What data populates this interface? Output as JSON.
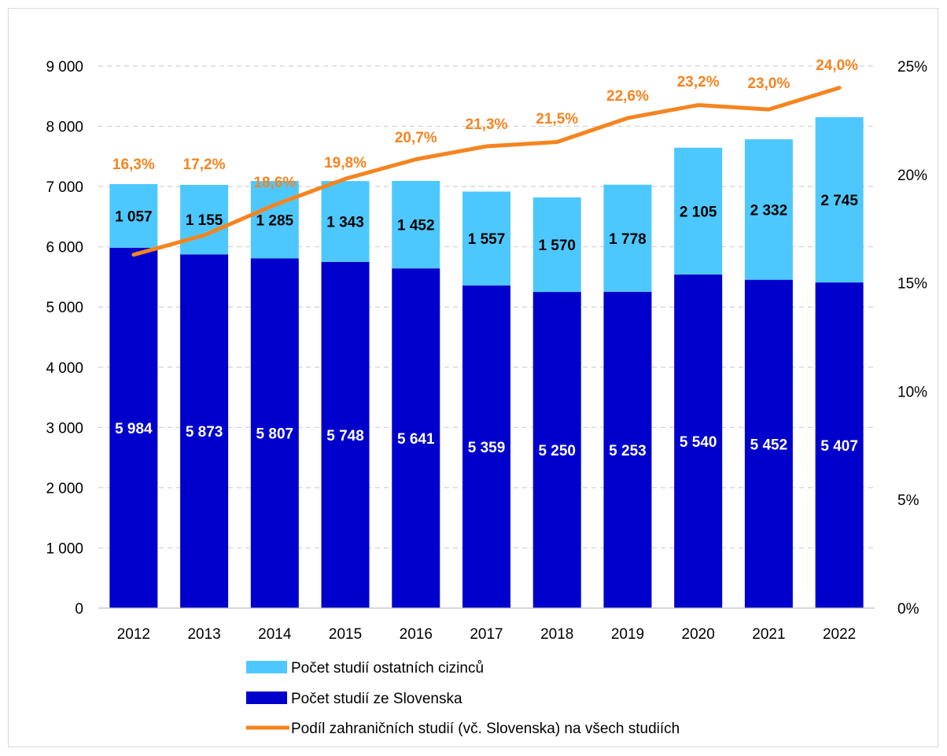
{
  "chart_data": {
    "type": "bar",
    "stacked": true,
    "categories": [
      "2012",
      "2013",
      "2014",
      "2015",
      "2016",
      "2017",
      "2018",
      "2019",
      "2020",
      "2021",
      "2022"
    ],
    "series": [
      {
        "name": "Počet studií ze Slovenska",
        "type": "bar",
        "color": "#0000cc",
        "values": [
          5984,
          5873,
          5807,
          5748,
          5641,
          5359,
          5250,
          5253,
          5540,
          5452,
          5407
        ],
        "labels": [
          "5 984",
          "5 873",
          "5 807",
          "5 748",
          "5 641",
          "5 359",
          "5 250",
          "5 253",
          "5 540",
          "5 452",
          "5 407"
        ]
      },
      {
        "name": "Počet studií ostatních cizinců",
        "type": "bar",
        "color": "#4dc8ff",
        "values": [
          1057,
          1155,
          1285,
          1343,
          1452,
          1557,
          1570,
          1778,
          2105,
          2332,
          2745
        ],
        "labels": [
          "1 057",
          "1 155",
          "1 285",
          "1 343",
          "1 452",
          "1 557",
          "1 570",
          "1 778",
          "2 105",
          "2 332",
          "2 745"
        ]
      },
      {
        "name": "Podíl zahraničních studií (vč. Slovenska) na všech studiích",
        "type": "line",
        "axis": "right",
        "color": "#f5841f",
        "values": [
          16.3,
          17.2,
          18.6,
          19.8,
          20.7,
          21.3,
          21.5,
          22.6,
          23.2,
          23.0,
          24.0
        ],
        "labels": [
          "16,3%",
          "17,2%",
          "18,6%",
          "19,8%",
          "20,7%",
          "21,3%",
          "21,5%",
          "22,6%",
          "23,2%",
          "23,0%",
          "24,0%"
        ]
      }
    ],
    "y_left": {
      "ylim": [
        0,
        9000
      ],
      "ticks": [
        0,
        1000,
        2000,
        3000,
        4000,
        5000,
        6000,
        7000,
        8000,
        9000
      ],
      "tick_labels": [
        "0",
        "1 000",
        "2 000",
        "3 000",
        "4 000",
        "5 000",
        "6 000",
        "7 000",
        "8 000",
        "9 000"
      ]
    },
    "y_right": {
      "ylim": [
        0,
        25
      ],
      "ticks": [
        0,
        5,
        10,
        15,
        20,
        25
      ],
      "tick_labels": [
        "0%",
        "5%",
        "10%",
        "15%",
        "20%",
        "25%"
      ]
    },
    "grid": true,
    "legend": {
      "placement": "bottom",
      "entries": [
        {
          "label": "Počet studií ostatních cizinců",
          "kind": "box",
          "color": "#4dc8ff"
        },
        {
          "label": "Počet studií ze Slovenska",
          "kind": "box",
          "color": "#0000cc"
        },
        {
          "label": "Podíl zahraničních studií (vč. Slovenska) na všech studiích",
          "kind": "line",
          "color": "#f5841f"
        }
      ]
    }
  }
}
